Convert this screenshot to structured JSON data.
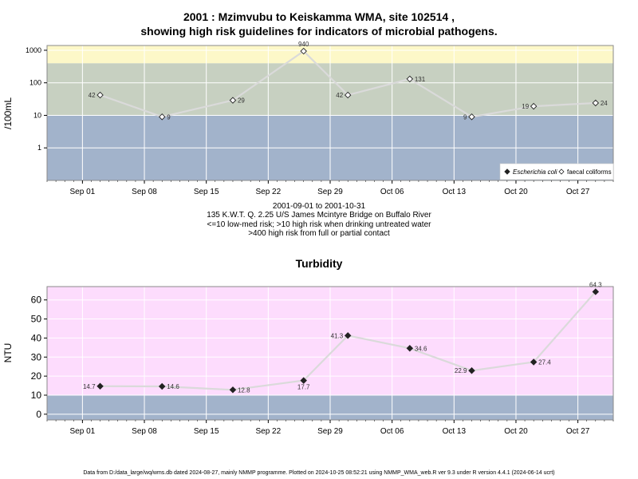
{
  "top_chart": {
    "title_line1": "2001 : Mzimvubu to Keiskamma WMA, site 102514 ,",
    "title_line2": "showing high risk guidelines for indicators of microbial pathogens.",
    "ylabel": "/100mL",
    "caption_lines": [
      "2001-09-01 to 2001-10-31",
      "135 K.W.T. Q. 2.25 U/S James Mcintyre Bridge on Buffalo River",
      "<=10 low-med risk; >10 high risk when drinking untreated water",
      ">400 high risk from full or partial contact"
    ],
    "legend": {
      "ecoli_label": "Escherichia coli",
      "faecal_label": "faecal coliforms",
      "position": "bottom-right"
    }
  },
  "bottom_chart": {
    "title": "Turbidity",
    "ylabel": "NTU"
  },
  "footer": "Data from D:/data_large/wq/wms.db dated 2024-08-27, mainly NMMP programme. Plotted on 2024-10-25 08:52:21 using NMMP_WMA_web.R ver 9.3 under R version 4.4.1 (2024-06-14 ucrt)",
  "colors": {
    "blue_band": "#a2b3cb",
    "grey_band": "#c7d0c1",
    "yellow_band": "#fdf8c8",
    "pink_band": "#fddcfd",
    "line": "#dadada",
    "grid": "#ffffff"
  },
  "chart_data": [
    {
      "type": "line",
      "yscale": "log",
      "ylim": [
        0.1,
        1400
      ],
      "yticks": [
        "1",
        "10",
        "100",
        "1000"
      ],
      "xlim": [
        "2001-08-28",
        "2001-10-31"
      ],
      "xticks": [
        "Sep 01",
        "Sep 08",
        "Sep 15",
        "Sep 22",
        "Sep 29",
        "Oct 06",
        "Oct 13",
        "Oct 20",
        "Oct 27"
      ],
      "grid": true,
      "bands": [
        {
          "from": 0.1,
          "to": 10,
          "label": "low-med risk"
        },
        {
          "from": 10,
          "to": 400,
          "label": "high risk drinking"
        },
        {
          "from": 400,
          "to": 1400,
          "label": "high risk contact"
        }
      ],
      "series": [
        {
          "name": "faecal coliforms",
          "marker": "open-diamond",
          "x": [
            "2001-09-03",
            "2001-09-10",
            "2001-09-18",
            "2001-09-26",
            "2001-10-01",
            "2001-10-08",
            "2001-10-15",
            "2001-10-22",
            "2001-10-29"
          ],
          "values": [
            42,
            9,
            29,
            940,
            42,
            131,
            9,
            19,
            24
          ],
          "labels": [
            "42",
            "9",
            "29",
            "940",
            "42",
            "131",
            "9",
            "19",
            "24"
          ],
          "label_side": [
            "left",
            "right",
            "right",
            "above",
            "left",
            "right",
            "left",
            "left",
            "right"
          ]
        }
      ]
    },
    {
      "type": "line",
      "ylim": [
        -3,
        67
      ],
      "yticks": [
        "0",
        "10",
        "20",
        "30",
        "40",
        "50",
        "60"
      ],
      "xlim": [
        "2001-08-28",
        "2001-10-31"
      ],
      "xticks": [
        "Sep 01",
        "Sep 08",
        "Sep 15",
        "Sep 22",
        "Sep 29",
        "Oct 06",
        "Oct 13",
        "Oct 20",
        "Oct 27"
      ],
      "grid": true,
      "bands": [
        {
          "from": -3,
          "to": 10,
          "label": ""
        },
        {
          "from": 10,
          "to": 67,
          "label": ""
        }
      ],
      "series": [
        {
          "name": "",
          "marker": "filled-diamond",
          "x": [
            "2001-09-03",
            "2001-09-10",
            "2001-09-18",
            "2001-09-26",
            "2001-10-01",
            "2001-10-08",
            "2001-10-15",
            "2001-10-22",
            "2001-10-29"
          ],
          "values": [
            14.7,
            14.6,
            12.8,
            17.7,
            41.3,
            34.6,
            22.9,
            27.4,
            64.3
          ],
          "labels": [
            "14.7",
            "14.6",
            "12.8",
            "17.7",
            "41.3",
            "34.6",
            "22.9",
            "27.4",
            "64.3"
          ],
          "label_side": [
            "left",
            "right",
            "right",
            "below",
            "left",
            "right",
            "left",
            "right",
            "above"
          ]
        }
      ]
    }
  ]
}
